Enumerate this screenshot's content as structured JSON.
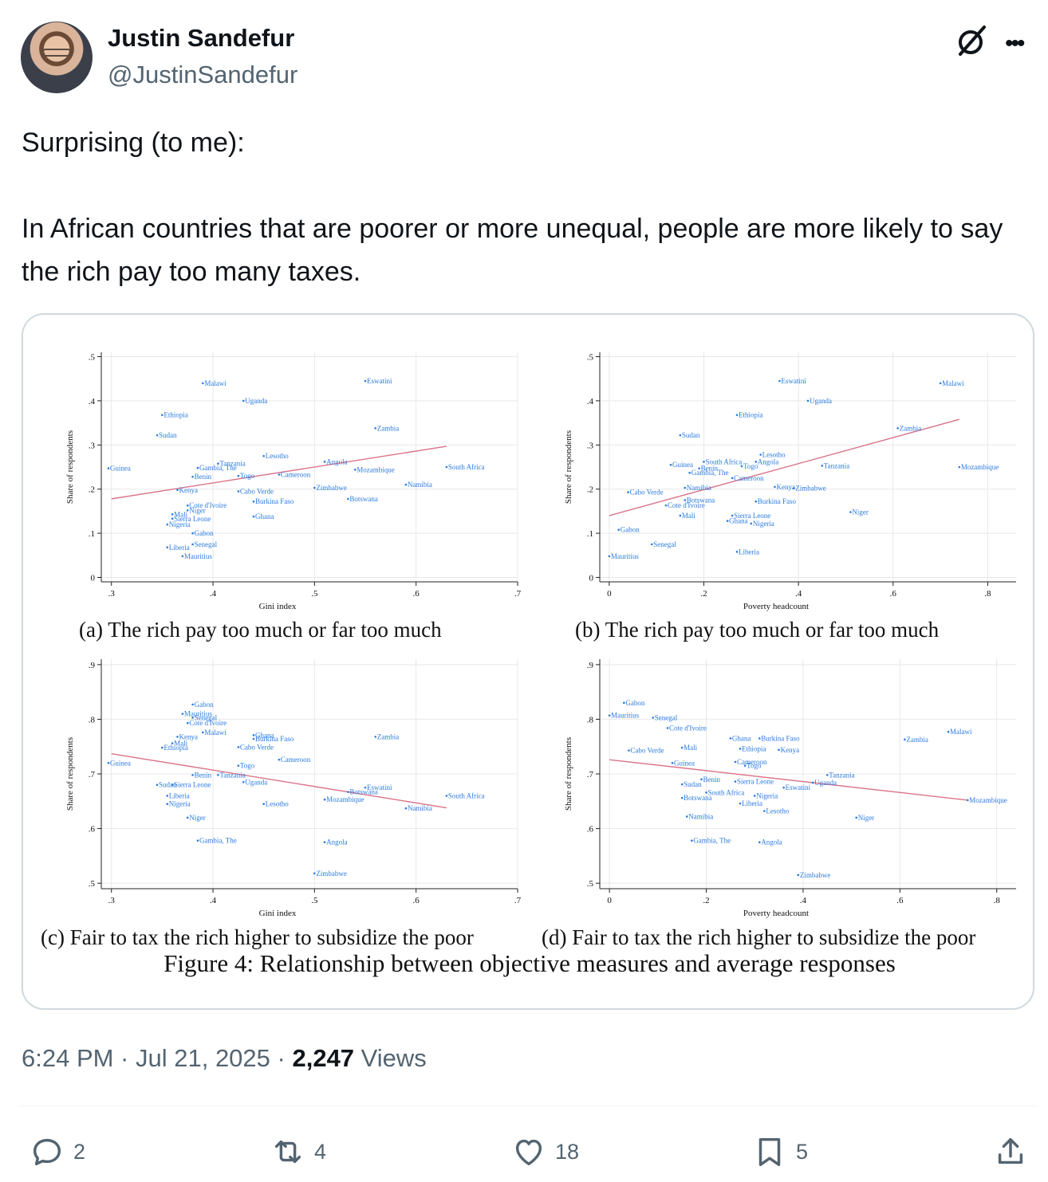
{
  "author": {
    "name": "Justin Sandefur",
    "handle": "@JustinSandefur",
    "avatar_icon": "avatar-photo"
  },
  "tweet": {
    "line1": "Surprising (to me):",
    "line2": "In African countries that are poorer or more unequal, people are more likely to say the rich pay too many taxes."
  },
  "figure": {
    "captions": {
      "a": "(a) The rich pay too much or far too much",
      "b": "(b) The rich pay too much or far too much",
      "c": "(c) Fair to tax the rich higher to subsidize the poor",
      "d": "(d) Fair to tax the rich higher to subsidize the poor"
    },
    "title": "Figure 4: Relationship between objective measures and average responses"
  },
  "chart_data": [
    {
      "id": "a",
      "type": "scatter",
      "xlabel": "Gini index",
      "ylabel": "Share of respondents",
      "xlim": [
        0.29,
        0.7
      ],
      "ylim": [
        -0.01,
        0.51
      ],
      "xticks": [
        0.3,
        0.4,
        0.5,
        0.6,
        0.7
      ],
      "xtick_labels": [
        ".3",
        ".4",
        ".5",
        ".6",
        ".7"
      ],
      "yticks": [
        0,
        0.1,
        0.2,
        0.3,
        0.4,
        0.5
      ],
      "ytick_labels": [
        "0",
        ".1",
        ".2",
        ".3",
        ".4",
        ".5"
      ],
      "fit": [
        [
          0.3,
          0.178
        ],
        [
          0.63,
          0.297
        ]
      ],
      "points": [
        {
          "label": "Malawi",
          "x": 0.39,
          "y": 0.44
        },
        {
          "label": "Eswatini",
          "x": 0.55,
          "y": 0.445
        },
        {
          "label": "Uganda",
          "x": 0.43,
          "y": 0.4
        },
        {
          "label": "Ethiopia",
          "x": 0.35,
          "y": 0.368
        },
        {
          "label": "Zambia",
          "x": 0.56,
          "y": 0.338
        },
        {
          "label": "Sudan",
          "x": 0.345,
          "y": 0.322
        },
        {
          "label": "Lesotho",
          "x": 0.45,
          "y": 0.275
        },
        {
          "label": "Angola",
          "x": 0.51,
          "y": 0.262
        },
        {
          "label": "Tanzania",
          "x": 0.405,
          "y": 0.258
        },
        {
          "label": "Guinea",
          "x": 0.297,
          "y": 0.247
        },
        {
          "label": "Gambia, The",
          "x": 0.385,
          "y": 0.248
        },
        {
          "label": "Mozambique",
          "x": 0.54,
          "y": 0.244
        },
        {
          "label": "South Africa",
          "x": 0.63,
          "y": 0.25
        },
        {
          "label": "Cameroon",
          "x": 0.465,
          "y": 0.233
        },
        {
          "label": "Togo",
          "x": 0.425,
          "y": 0.23
        },
        {
          "label": "Benin",
          "x": 0.38,
          "y": 0.228
        },
        {
          "label": "Namibia",
          "x": 0.59,
          "y": 0.21
        },
        {
          "label": "Zimbabwe",
          "x": 0.5,
          "y": 0.203
        },
        {
          "label": "Kenya",
          "x": 0.365,
          "y": 0.198
        },
        {
          "label": "Cabo Verde",
          "x": 0.425,
          "y": 0.195
        },
        {
          "label": "Botswana",
          "x": 0.533,
          "y": 0.178
        },
        {
          "label": "Burkina Faso",
          "x": 0.44,
          "y": 0.172
        },
        {
          "label": "Cote d'Ivoire",
          "x": 0.375,
          "y": 0.163
        },
        {
          "label": "Niger",
          "x": 0.375,
          "y": 0.152
        },
        {
          "label": "Mali",
          "x": 0.36,
          "y": 0.143
        },
        {
          "label": "Ghana",
          "x": 0.44,
          "y": 0.138
        },
        {
          "label": "Sierra Leone",
          "x": 0.36,
          "y": 0.133
        },
        {
          "label": "Nigeria",
          "x": 0.355,
          "y": 0.12
        },
        {
          "label": "Gabon",
          "x": 0.38,
          "y": 0.1
        },
        {
          "label": "Senegal",
          "x": 0.38,
          "y": 0.075
        },
        {
          "label": "Liberia",
          "x": 0.355,
          "y": 0.068
        },
        {
          "label": "Mauritius",
          "x": 0.37,
          "y": 0.048
        }
      ]
    },
    {
      "id": "b",
      "type": "scatter",
      "xlabel": "Poverty headcount",
      "ylabel": "Share of respondents",
      "xlim": [
        -0.02,
        0.86
      ],
      "ylim": [
        -0.01,
        0.51
      ],
      "xticks": [
        0,
        0.2,
        0.4,
        0.6,
        0.8
      ],
      "xtick_labels": [
        "0",
        ".2",
        ".4",
        ".6",
        ".8"
      ],
      "yticks": [
        0,
        0.1,
        0.2,
        0.3,
        0.4,
        0.5
      ],
      "ytick_labels": [
        "0",
        ".1",
        ".2",
        ".3",
        ".4",
        ".5"
      ],
      "fit": [
        [
          0,
          0.14
        ],
        [
          0.74,
          0.358
        ]
      ],
      "points": [
        {
          "label": "Eswatini",
          "x": 0.36,
          "y": 0.445
        },
        {
          "label": "Malawi",
          "x": 0.7,
          "y": 0.44
        },
        {
          "label": "Uganda",
          "x": 0.42,
          "y": 0.4
        },
        {
          "label": "Ethiopia",
          "x": 0.27,
          "y": 0.368
        },
        {
          "label": "Zambia",
          "x": 0.61,
          "y": 0.338
        },
        {
          "label": "Sudan",
          "x": 0.15,
          "y": 0.322
        },
        {
          "label": "Lesotho",
          "x": 0.32,
          "y": 0.278
        },
        {
          "label": "Angola",
          "x": 0.31,
          "y": 0.262
        },
        {
          "label": "South Africa",
          "x": 0.2,
          "y": 0.262
        },
        {
          "label": "Guinea",
          "x": 0.13,
          "y": 0.255
        },
        {
          "label": "Togo",
          "x": 0.28,
          "y": 0.252
        },
        {
          "label": "Benin",
          "x": 0.19,
          "y": 0.247
        },
        {
          "label": "Gambia, The",
          "x": 0.17,
          "y": 0.237
        },
        {
          "label": "Cameroon",
          "x": 0.26,
          "y": 0.225
        },
        {
          "label": "Tanzania",
          "x": 0.45,
          "y": 0.253
        },
        {
          "label": "Mozambique",
          "x": 0.74,
          "y": 0.25
        },
        {
          "label": "Namibia",
          "x": 0.16,
          "y": 0.203
        },
        {
          "label": "Kenya",
          "x": 0.35,
          "y": 0.205
        },
        {
          "label": "Zimbabwe",
          "x": 0.39,
          "y": 0.202
        },
        {
          "label": "Cabo Verde",
          "x": 0.04,
          "y": 0.193
        },
        {
          "label": "Botswana",
          "x": 0.16,
          "y": 0.175
        },
        {
          "label": "Burkina Faso",
          "x": 0.31,
          "y": 0.172
        },
        {
          "label": "Cote d'Ivoire",
          "x": 0.12,
          "y": 0.163
        },
        {
          "label": "Niger",
          "x": 0.51,
          "y": 0.148
        },
        {
          "label": "Mali",
          "x": 0.15,
          "y": 0.14
        },
        {
          "label": "Sierra Leone",
          "x": 0.26,
          "y": 0.14
        },
        {
          "label": "Ghana",
          "x": 0.25,
          "y": 0.128
        },
        {
          "label": "Nigeria",
          "x": 0.3,
          "y": 0.122
        },
        {
          "label": "Gabon",
          "x": 0.02,
          "y": 0.108
        },
        {
          "label": "Senegal",
          "x": 0.09,
          "y": 0.075
        },
        {
          "label": "Liberia",
          "x": 0.27,
          "y": 0.058
        },
        {
          "label": "Mauritius",
          "x": 0.0,
          "y": 0.048
        }
      ]
    },
    {
      "id": "c",
      "type": "scatter",
      "xlabel": "Gini index",
      "ylabel": "Share of respondents",
      "xlim": [
        0.29,
        0.7
      ],
      "ylim": [
        0.49,
        0.91
      ],
      "xticks": [
        0.3,
        0.4,
        0.5,
        0.6,
        0.7
      ],
      "xtick_labels": [
        ".3",
        ".4",
        ".5",
        ".6",
        ".7"
      ],
      "yticks": [
        0.5,
        0.6,
        0.7,
        0.8,
        0.9
      ],
      "ytick_labels": [
        ".5",
        ".6",
        ".7",
        ".8",
        ".9"
      ],
      "fit": [
        [
          0.3,
          0.737
        ],
        [
          0.63,
          0.638
        ]
      ],
      "points": [
        {
          "label": "Gabon",
          "x": 0.38,
          "y": 0.827
        },
        {
          "label": "Mauritius",
          "x": 0.37,
          "y": 0.81
        },
        {
          "label": "Senegal",
          "x": 0.38,
          "y": 0.803
        },
        {
          "label": "Cote d'Ivoire",
          "x": 0.375,
          "y": 0.793
        },
        {
          "label": "Malawi",
          "x": 0.39,
          "y": 0.776
        },
        {
          "label": "Zambia",
          "x": 0.56,
          "y": 0.768
        },
        {
          "label": "Kenya",
          "x": 0.365,
          "y": 0.768
        },
        {
          "label": "Ghana",
          "x": 0.44,
          "y": 0.771
        },
        {
          "label": "Burkina Faso",
          "x": 0.44,
          "y": 0.764
        },
        {
          "label": "Mali",
          "x": 0.36,
          "y": 0.756
        },
        {
          "label": "Cabo Verde",
          "x": 0.425,
          "y": 0.749
        },
        {
          "label": "Ethiopia",
          "x": 0.35,
          "y": 0.748
        },
        {
          "label": "Cameroon",
          "x": 0.465,
          "y": 0.726
        },
        {
          "label": "Guinea",
          "x": 0.297,
          "y": 0.72
        },
        {
          "label": "Togo",
          "x": 0.425,
          "y": 0.715
        },
        {
          "label": "Benin",
          "x": 0.38,
          "y": 0.698
        },
        {
          "label": "Tanzania",
          "x": 0.405,
          "y": 0.698
        },
        {
          "label": "Uganda",
          "x": 0.43,
          "y": 0.685
        },
        {
          "label": "Sudan",
          "x": 0.345,
          "y": 0.68
        },
        {
          "label": "Sierra Leone",
          "x": 0.36,
          "y": 0.68
        },
        {
          "label": "Eswatini",
          "x": 0.55,
          "y": 0.675
        },
        {
          "label": "Botswana",
          "x": 0.533,
          "y": 0.667
        },
        {
          "label": "South Africa",
          "x": 0.63,
          "y": 0.66
        },
        {
          "label": "Liberia",
          "x": 0.355,
          "y": 0.66
        },
        {
          "label": "Mozambique",
          "x": 0.51,
          "y": 0.653
        },
        {
          "label": "Nigeria",
          "x": 0.355,
          "y": 0.645
        },
        {
          "label": "Lesotho",
          "x": 0.45,
          "y": 0.645
        },
        {
          "label": "Namibia",
          "x": 0.59,
          "y": 0.637
        },
        {
          "label": "Niger",
          "x": 0.375,
          "y": 0.62
        },
        {
          "label": "Gambia, The",
          "x": 0.385,
          "y": 0.578
        },
        {
          "label": "Angola",
          "x": 0.51,
          "y": 0.575
        },
        {
          "label": "Zimbabwe",
          "x": 0.5,
          "y": 0.518
        }
      ]
    },
    {
      "id": "d",
      "type": "scatter",
      "xlabel": "Poverty headcount",
      "ylabel": "Share of respondents",
      "xlim": [
        -0.02,
        0.84
      ],
      "ylim": [
        0.49,
        0.91
      ],
      "xticks": [
        0,
        0.2,
        0.4,
        0.6,
        0.8
      ],
      "xtick_labels": [
        "0",
        ".2",
        ".4",
        ".6",
        ".8"
      ],
      "yticks": [
        0.5,
        0.6,
        0.7,
        0.8,
        0.9
      ],
      "ytick_labels": [
        ".5",
        ".6",
        ".7",
        ".8",
        ".9"
      ],
      "fit": [
        [
          0,
          0.726
        ],
        [
          0.74,
          0.652
        ]
      ],
      "points": [
        {
          "label": "Gabon",
          "x": 0.03,
          "y": 0.83
        },
        {
          "label": "Mauritius",
          "x": 0.0,
          "y": 0.807
        },
        {
          "label": "Senegal",
          "x": 0.09,
          "y": 0.803
        },
        {
          "label": "Cote d'Ivoire",
          "x": 0.12,
          "y": 0.784
        },
        {
          "label": "Malawi",
          "x": 0.7,
          "y": 0.777
        },
        {
          "label": "Zambia",
          "x": 0.61,
          "y": 0.763
        },
        {
          "label": "Ghana",
          "x": 0.25,
          "y": 0.765
        },
        {
          "label": "Burkina Faso",
          "x": 0.31,
          "y": 0.765
        },
        {
          "label": "Mali",
          "x": 0.15,
          "y": 0.748
        },
        {
          "label": "Ethiopia",
          "x": 0.27,
          "y": 0.746
        },
        {
          "label": "Kenya",
          "x": 0.35,
          "y": 0.744
        },
        {
          "label": "Cabo Verde",
          "x": 0.04,
          "y": 0.743
        },
        {
          "label": "Cameroon",
          "x": 0.26,
          "y": 0.722
        },
        {
          "label": "Guinea",
          "x": 0.13,
          "y": 0.72
        },
        {
          "label": "Togo",
          "x": 0.28,
          "y": 0.715
        },
        {
          "label": "Tanzania",
          "x": 0.45,
          "y": 0.698
        },
        {
          "label": "Benin",
          "x": 0.19,
          "y": 0.69
        },
        {
          "label": "Sierra Leone",
          "x": 0.26,
          "y": 0.686
        },
        {
          "label": "Uganda",
          "x": 0.42,
          "y": 0.684
        },
        {
          "label": "Sudan",
          "x": 0.15,
          "y": 0.681
        },
        {
          "label": "Eswatini",
          "x": 0.36,
          "y": 0.675
        },
        {
          "label": "South Africa",
          "x": 0.2,
          "y": 0.666
        },
        {
          "label": "Nigeria",
          "x": 0.3,
          "y": 0.66
        },
        {
          "label": "Mozambique",
          "x": 0.74,
          "y": 0.652
        },
        {
          "label": "Botswana",
          "x": 0.15,
          "y": 0.656
        },
        {
          "label": "Liberia",
          "x": 0.27,
          "y": 0.646
        },
        {
          "label": "Lesotho",
          "x": 0.32,
          "y": 0.632
        },
        {
          "label": "Namibia",
          "x": 0.16,
          "y": 0.622
        },
        {
          "label": "Niger",
          "x": 0.51,
          "y": 0.62
        },
        {
          "label": "Gambia, The",
          "x": 0.17,
          "y": 0.578
        },
        {
          "label": "Angola",
          "x": 0.31,
          "y": 0.575
        },
        {
          "label": "Zimbabwe",
          "x": 0.39,
          "y": 0.515
        }
      ]
    }
  ],
  "meta": {
    "time": "6:24 PM · Jul 21, 2025 · ",
    "views_count": "2,247",
    "views_label": " Views"
  },
  "actions": {
    "replies": "2",
    "reposts": "4",
    "likes": "18",
    "bookmarks": "5"
  },
  "colors": {
    "point": "#2b7be0",
    "fit_line": "#d9748a",
    "grid": "#e8e8e8"
  }
}
